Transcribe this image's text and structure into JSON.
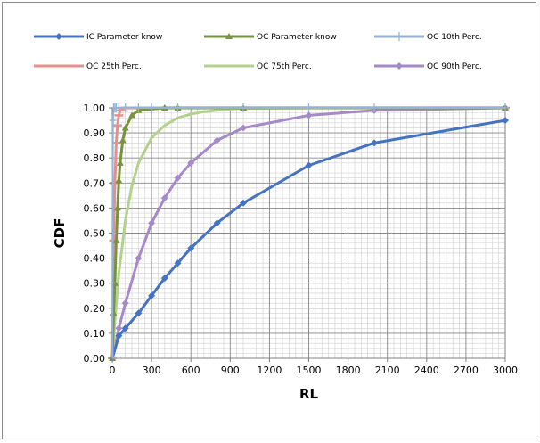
{
  "chart_data": {
    "type": "line",
    "xlabel": "RL",
    "ylabel": "CDF",
    "xlim": [
      0,
      3000
    ],
    "ylim": [
      0,
      1
    ],
    "x_ticks": [
      "0",
      "300",
      "600",
      "900",
      "1200",
      "1500",
      "1800",
      "2100",
      "2400",
      "2700",
      "3000"
    ],
    "y_ticks": [
      "0.00",
      "0.10",
      "0.20",
      "0.30",
      "0.40",
      "0.50",
      "0.60",
      "0.70",
      "0.80",
      "0.90",
      "1.00"
    ],
    "grid": true,
    "legend_position": "top",
    "series": [
      {
        "name": "IC Parameter know",
        "color": "#4472C4",
        "marker": "diamond",
        "x": [
          1,
          50,
          100,
          200,
          300,
          400,
          500,
          600,
          800,
          1000,
          1500,
          2000,
          3000
        ],
        "y": [
          0.0,
          0.09,
          0.12,
          0.18,
          0.25,
          0.32,
          0.38,
          0.44,
          0.54,
          0.62,
          0.77,
          0.86,
          0.95
        ]
      },
      {
        "name": "OC Parameter know",
        "color": "#77933C",
        "marker": "triangle",
        "x": [
          1,
          10,
          20,
          30,
          40,
          50,
          60,
          80,
          100,
          150,
          200,
          400,
          500,
          1000,
          3000
        ],
        "y": [
          0.0,
          0.18,
          0.3,
          0.47,
          0.6,
          0.71,
          0.78,
          0.87,
          0.92,
          0.97,
          0.99,
          1.0,
          1.0,
          1.0,
          1.0
        ]
      },
      {
        "name": "OC 10th Perc.",
        "color": "#95B3D7",
        "marker": "plus",
        "x": [
          1,
          2,
          5,
          10,
          20,
          30,
          50,
          100,
          200,
          300,
          500,
          1000,
          1500,
          2000,
          3000
        ],
        "y": [
          0.0,
          0.5,
          0.95,
          1.0,
          1.0,
          1.0,
          1.0,
          1.0,
          1.0,
          1.0,
          1.0,
          1.0,
          1.0,
          1.0,
          1.0
        ]
      },
      {
        "name": "OC 25th Perc.",
        "color": "#E6908C",
        "marker": "dash",
        "x": [
          1,
          10,
          20,
          30,
          40,
          50,
          60,
          80,
          100,
          150,
          200,
          300,
          400,
          500,
          600,
          800,
          1000,
          1500,
          2000,
          3000
        ],
        "y": [
          0.0,
          0.47,
          0.7,
          0.86,
          0.93,
          0.97,
          0.99,
          1.0,
          1.0,
          1.0,
          1.0,
          1.0,
          1.0,
          1.0,
          1.0,
          1.0,
          1.0,
          1.0,
          1.0,
          1.0
        ]
      },
      {
        "name": "OC 75th Perc.",
        "color": "#B2D28C",
        "marker": "none",
        "x": [
          1,
          20,
          50,
          100,
          150,
          200,
          300,
          400,
          500,
          600,
          700,
          800,
          900,
          1000,
          1500,
          2000,
          3000
        ],
        "y": [
          0.0,
          0.15,
          0.34,
          0.55,
          0.69,
          0.78,
          0.88,
          0.93,
          0.96,
          0.975,
          0.985,
          0.99,
          0.995,
          0.998,
          1.0,
          1.0,
          1.0
        ]
      },
      {
        "name": "OC 90th Perc.",
        "color": "#A689C9",
        "marker": "diamond",
        "x": [
          1,
          50,
          100,
          200,
          300,
          400,
          500,
          600,
          800,
          1000,
          1500,
          2000,
          3000
        ],
        "y": [
          0.0,
          0.12,
          0.22,
          0.4,
          0.54,
          0.64,
          0.72,
          0.78,
          0.87,
          0.92,
          0.97,
          0.99,
          1.0
        ]
      }
    ]
  }
}
